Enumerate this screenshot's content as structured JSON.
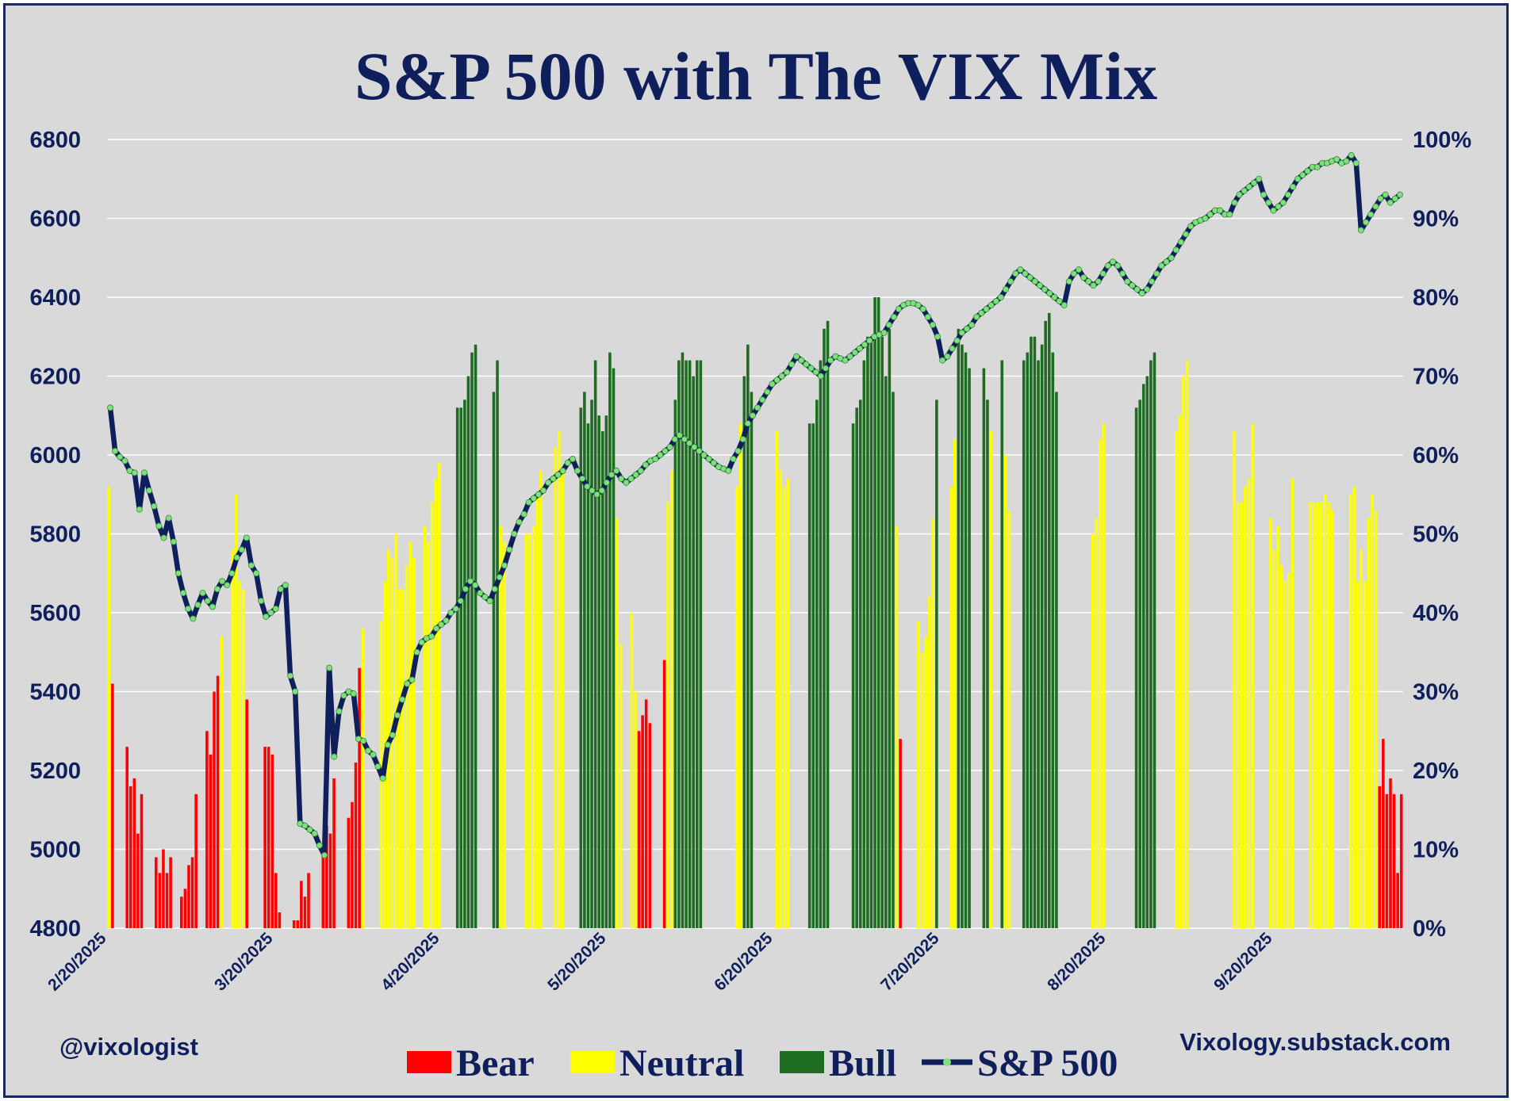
{
  "chart_data": {
    "type": "bar+line",
    "title": "S&P 500 with The VIX Mix",
    "left_axis": {
      "range": [
        4800,
        6800
      ],
      "ticks": [
        4800,
        5000,
        5200,
        5400,
        5600,
        5800,
        6000,
        6200,
        6400,
        6600,
        6800
      ],
      "tick_labels": [
        "4800",
        "5000",
        "5200",
        "5400",
        "5600",
        "5800",
        "6000",
        "6200",
        "6400",
        "6600",
        "6800"
      ]
    },
    "right_axis": {
      "range": [
        0,
        100
      ],
      "unit": "%",
      "ticks": [
        0,
        10,
        20,
        30,
        40,
        50,
        60,
        70,
        80,
        90,
        100
      ],
      "tick_labels": [
        "0%",
        "10%",
        "20%",
        "30%",
        "40%",
        "50%",
        "60%",
        "70%",
        "80%",
        "90%",
        "100%"
      ]
    },
    "x_tick_labels": [
      "2/20/2025",
      "3/20/2025",
      "4/20/2025",
      "5/20/2025",
      "6/20/2025",
      "7/20/2025",
      "8/20/2025",
      "9/20/2025"
    ],
    "grid": true,
    "legend_position": "bottom",
    "series_colors": {
      "Bear": "#ff0000",
      "Neutral": "#ffff00",
      "Bull": "#1e6b22",
      "S&P 500": "#0f1f5c",
      "marker": "#7fe07f"
    },
    "legend": [
      {
        "name": "Bear",
        "color": "#ff0000",
        "kind": "bar"
      },
      {
        "name": "Neutral",
        "color": "#ffff00",
        "kind": "bar"
      },
      {
        "name": "Bull",
        "color": "#1e6b22",
        "kind": "bar"
      },
      {
        "name": "S&P 500",
        "color": "#0f1f5c",
        "kind": "line"
      }
    ],
    "vix_mix_percent": [
      56,
      31,
      0,
      0,
      0,
      23,
      18,
      19,
      12,
      17,
      0,
      0,
      0,
      9,
      7,
      10,
      7,
      9,
      0,
      0,
      4,
      5,
      8,
      9,
      17,
      0,
      0,
      25,
      22,
      30,
      32,
      37,
      0,
      0,
      48,
      55,
      44,
      43,
      29,
      0,
      0,
      0,
      0,
      23,
      23,
      22,
      7,
      2,
      0,
      0,
      0,
      1,
      1,
      6,
      4,
      7,
      0,
      0,
      0,
      10,
      13,
      12,
      19,
      0,
      0,
      0,
      14,
      16,
      21,
      33,
      38,
      0,
      0,
      0,
      0,
      39,
      44,
      48,
      47,
      50,
      43,
      43,
      46,
      49,
      47,
      0,
      0,
      51,
      49,
      54,
      57,
      59,
      0,
      0,
      0,
      0,
      66,
      66,
      67,
      70,
      73,
      74,
      0,
      0,
      0,
      0,
      68,
      72,
      51,
      49,
      0,
      0,
      0,
      0,
      0,
      50,
      50,
      51,
      55,
      58,
      0,
      0,
      0,
      61,
      63,
      58,
      0,
      0,
      0,
      0,
      66,
      68,
      64,
      67,
      72,
      65,
      63,
      65,
      73,
      71,
      52,
      36,
      0,
      0,
      40,
      30,
      25,
      27,
      29,
      26,
      0,
      0,
      0,
      34,
      54,
      58,
      67,
      72,
      73,
      72,
      72,
      70,
      72,
      72,
      0,
      0,
      0,
      0,
      0,
      0,
      0,
      0,
      0,
      56,
      64,
      70,
      74,
      68,
      0,
      0,
      0,
      0,
      0,
      0,
      63,
      58,
      56,
      57,
      0,
      0,
      0,
      0,
      0,
      64,
      64,
      67,
      72,
      76,
      77,
      0,
      0,
      0,
      0,
      0,
      0,
      64,
      66,
      67,
      72,
      75,
      75,
      80,
      80,
      75,
      70,
      76,
      68,
      51,
      24,
      0,
      0,
      0,
      0,
      39,
      35,
      37,
      42,
      52,
      67,
      0,
      0,
      0,
      56,
      62,
      76,
      74,
      73,
      71,
      0,
      0,
      0,
      71,
      67,
      63,
      0,
      0,
      72,
      60,
      53,
      0,
      0,
      0,
      72,
      73,
      75,
      75,
      72,
      74,
      77,
      78,
      73,
      68,
      0,
      0,
      0,
      0,
      0,
      0,
      0,
      0,
      0,
      50,
      52,
      62,
      64,
      0,
      0,
      0,
      0,
      0,
      0,
      0,
      0,
      66,
      67,
      69,
      70,
      72,
      73,
      0,
      0,
      0,
      0,
      0,
      63,
      65,
      70,
      72,
      0,
      0,
      0,
      0,
      0,
      0,
      0,
      0,
      0,
      0,
      0,
      0,
      63,
      54,
      54,
      56,
      57,
      64,
      0,
      0,
      0,
      0,
      52,
      48,
      51,
      46,
      44,
      45,
      57,
      0,
      0,
      0,
      0,
      54,
      54,
      54,
      54,
      55,
      54,
      53,
      0,
      0,
      0,
      0,
      55,
      56,
      44,
      48,
      44,
      52,
      55,
      53,
      18,
      24,
      17,
      19,
      17,
      7,
      17
    ],
    "vix_mix_regime": [
      "Neutral",
      "Bear",
      "",
      "",
      "",
      "Bear",
      "Bear",
      "Bear",
      "Bear",
      "Bear",
      "",
      "",
      "",
      "Bear",
      "Bear",
      "Bear",
      "Bear",
      "Bear",
      "",
      "",
      "Bear",
      "Bear",
      "Bear",
      "Bear",
      "Bear",
      "",
      "",
      "Bear",
      "Bear",
      "Bear",
      "Bear",
      "Neutral",
      "",
      "",
      "Neutral",
      "Neutral",
      "Neutral",
      "Neutral",
      "Bear",
      "",
      "",
      "",
      "",
      "Bear",
      "Bear",
      "Bear",
      "Bear",
      "Bear",
      "",
      "",
      "",
      "Bear",
      "Bear",
      "Bear",
      "Bear",
      "Bear",
      "",
      "",
      "",
      "Bear",
      "Bear",
      "Bear",
      "Bear",
      "",
      "",
      "",
      "Bear",
      "Bear",
      "Bear",
      "Bear",
      "Neutral",
      "",
      "",
      "",
      "",
      "Neutral",
      "Neutral",
      "Neutral",
      "Neutral",
      "Neutral",
      "Neutral",
      "Neutral",
      "Neutral",
      "Neutral",
      "Neutral",
      "",
      "",
      "Neutral",
      "Neutral",
      "Neutral",
      "Neutral",
      "Neutral",
      "",
      "",
      "",
      "",
      "Bull",
      "Bull",
      "Bull",
      "Bull",
      "Bull",
      "Bull",
      "",
      "",
      "",
      "",
      "Bull",
      "Bull",
      "Neutral",
      "Neutral",
      "",
      "",
      "",
      "",
      "",
      "Neutral",
      "Neutral",
      "Neutral",
      "Neutral",
      "Neutral",
      "",
      "",
      "",
      "Neutral",
      "Neutral",
      "Neutral",
      "",
      "",
      "",
      "",
      "Bull",
      "Bull",
      "Bull",
      "Bull",
      "Bull",
      "Bull",
      "Bull",
      "Bull",
      "Bull",
      "Bull",
      "Neutral",
      "Neutral",
      "",
      "",
      "Neutral",
      "Neutral",
      "Bear",
      "Bear",
      "Bear",
      "Bear",
      "",
      "",
      "",
      "Bear",
      "Neutral",
      "Neutral",
      "Bull",
      "Bull",
      "Bull",
      "Bull",
      "Bull",
      "Bull",
      "Bull",
      "Bull",
      "",
      "",
      "",
      "",
      "",
      "",
      "",
      "",
      "",
      "Neutral",
      "Neutral",
      "Bull",
      "Bull",
      "Bull",
      "",
      "",
      "",
      "",
      "",
      "",
      "Neutral",
      "Neutral",
      "Neutral",
      "Neutral",
      "",
      "",
      "",
      "",
      "",
      "Bull",
      "Bull",
      "Bull",
      "Bull",
      "Bull",
      "Bull",
      "",
      "",
      "",
      "",
      "",
      "",
      "Bull",
      "Bull",
      "Bull",
      "Bull",
      "Bull",
      "Bull",
      "Bull",
      "Bull",
      "Bull",
      "Bull",
      "Bull",
      "Bull",
      "Neutral",
      "Bear",
      "",
      "",
      "",
      "",
      "Neutral",
      "Neutral",
      "Neutral",
      "Neutral",
      "Neutral",
      "Bull",
      "",
      "",
      "",
      "Neutral",
      "Neutral",
      "Bull",
      "Bull",
      "Bull",
      "Bull",
      "",
      "",
      "",
      "Bull",
      "Bull",
      "Neutral",
      "",
      "",
      "Bull",
      "Neutral",
      "Neutral",
      "",
      "",
      "",
      "Bull",
      "Bull",
      "Bull",
      "Bull",
      "Bull",
      "Bull",
      "Bull",
      "Bull",
      "Bull",
      "Bull",
      "",
      "",
      "",
      "",
      "",
      "",
      "",
      "",
      "",
      "Neutral",
      "Neutral",
      "Neutral",
      "Neutral",
      "",
      "",
      "",
      "",
      "",
      "",
      "",
      "",
      "Bull",
      "Bull",
      "Bull",
      "Bull",
      "Bull",
      "Bull",
      "",
      "",
      "",
      "",
      "",
      "Neutral",
      "Neutral",
      "Neutral",
      "Neutral",
      "",
      "",
      "",
      "",
      "",
      "",
      "",
      "",
      "",
      "",
      "",
      "",
      "Neutral",
      "Neutral",
      "Neutral",
      "Neutral",
      "Neutral",
      "Neutral",
      "",
      "",
      "",
      "",
      "Neutral",
      "Neutral",
      "Neutral",
      "Neutral",
      "Neutral",
      "Neutral",
      "Neutral",
      "",
      "",
      "",
      "",
      "Neutral",
      "Neutral",
      "Neutral",
      "Neutral",
      "Neutral",
      "Neutral",
      "Neutral",
      "",
      "",
      "",
      "",
      "Neutral",
      "Neutral",
      "Neutral",
      "Neutral",
      "Neutral",
      "Neutral",
      "Neutral",
      "Neutral",
      "Bear",
      "Bear",
      "Bear",
      "Bear",
      "Bear",
      "Bear",
      "Bear"
    ],
    "sp500": [
      6120,
      6010,
      5995,
      5985,
      5960,
      5955,
      5862,
      5955,
      5910,
      5870,
      5820,
      5790,
      5840,
      5780,
      5700,
      5650,
      5610,
      5585,
      5620,
      5650,
      5630,
      5615,
      5660,
      5680,
      5670,
      5700,
      5740,
      5760,
      5790,
      5720,
      5700,
      5630,
      5590,
      5600,
      5610,
      5660,
      5670,
      5440,
      5400,
      5065,
      5060,
      5050,
      5040,
      5010,
      4985,
      5460,
      5235,
      5350,
      5390,
      5400,
      5395,
      5280,
      5275,
      5250,
      5240,
      5210,
      5180,
      5265,
      5290,
      5340,
      5380,
      5420,
      5430,
      5500,
      5525,
      5535,
      5540,
      5560,
      5570,
      5580,
      5600,
      5610,
      5630,
      5660,
      5680,
      5670,
      5650,
      5640,
      5630,
      5660,
      5690,
      5720,
      5760,
      5800,
      5830,
      5850,
      5880,
      5890,
      5900,
      5910,
      5930,
      5940,
      5950,
      5960,
      5980,
      5990,
      5960,
      5940,
      5920,
      5910,
      5900,
      5910,
      5930,
      5950,
      5960,
      5940,
      5930,
      5940,
      5950,
      5960,
      5975,
      5985,
      5990,
      6000,
      6010,
      6020,
      6040,
      6050,
      6040,
      6030,
      6020,
      6010,
      6000,
      5990,
      5980,
      5970,
      5965,
      5960,
      5990,
      6010,
      6040,
      6080,
      6100,
      6120,
      6140,
      6160,
      6180,
      6190,
      6200,
      6210,
      6230,
      6250,
      6240,
      6230,
      6220,
      6210,
      6200,
      6220,
      6240,
      6250,
      6245,
      6240,
      6250,
      6260,
      6270,
      6280,
      6290,
      6300,
      6305,
      6310,
      6330,
      6350,
      6370,
      6380,
      6385,
      6385,
      6380,
      6370,
      6350,
      6330,
      6300,
      6240,
      6250,
      6270,
      6290,
      6310,
      6320,
      6330,
      6350,
      6360,
      6370,
      6380,
      6390,
      6400,
      6420,
      6440,
      6460,
      6470,
      6460,
      6450,
      6440,
      6430,
      6420,
      6410,
      6400,
      6390,
      6380,
      6440,
      6460,
      6470,
      6450,
      6440,
      6430,
      6440,
      6460,
      6480,
      6490,
      6480,
      6460,
      6440,
      6430,
      6420,
      6410,
      6420,
      6440,
      6460,
      6480,
      6490,
      6500,
      6520,
      6540,
      6560,
      6580,
      6590,
      6595,
      6600,
      6610,
      6620,
      6620,
      6610,
      6610,
      6640,
      6660,
      6670,
      6680,
      6690,
      6700,
      6660,
      6640,
      6620,
      6630,
      6640,
      6660,
      6680,
      6700,
      6710,
      6720,
      6730,
      6730,
      6740,
      6740,
      6745,
      6750,
      6740,
      6745,
      6760,
      6740,
      6570,
      6590,
      6610,
      6630,
      6650,
      6660,
      6640,
      6650,
      6660
    ]
  },
  "footer": {
    "left_handle": "@vixologist",
    "right_site": "Vixology.substack.com"
  }
}
